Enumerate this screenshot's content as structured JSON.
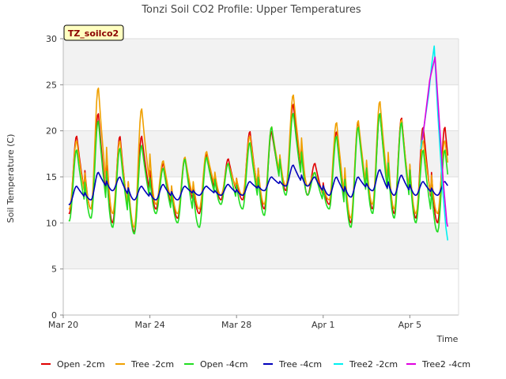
{
  "chart_data": {
    "type": "line",
    "title": "Tonzi Soil CO2 Profile: Upper Temperatures",
    "badge": "TZ_soilco2",
    "xlabel": "Time",
    "ylabel": "Soil Temperature (C)",
    "ylim": [
      0,
      30
    ],
    "yticks": [
      0,
      5,
      10,
      15,
      20,
      25,
      30
    ],
    "xlim": [
      "2024-03-20",
      "2024-04-07T06:00"
    ],
    "xticks": [
      {
        "date": "2024-03-20",
        "label": "Mar 20"
      },
      {
        "date": "2024-03-24",
        "label": "Mar 24"
      },
      {
        "date": "2024-03-28",
        "label": "Mar 28"
      },
      {
        "date": "2024-04-01",
        "label": "Apr 1"
      },
      {
        "date": "2024-04-05",
        "label": "Apr 5"
      }
    ],
    "grid": "horizontal bands",
    "legend_position": "bottom",
    "series": [
      {
        "name": "Open -2cm",
        "color": "#e00000",
        "start": "2024-03-20T06:00",
        "end": "2024-04-06T18:00",
        "max": [
          19.5,
          22.0,
          19.5,
          19.5,
          16.5,
          17.0,
          17.5,
          17.0,
          20.0,
          20.0,
          23.0,
          16.5,
          20.0,
          21.0,
          22.0,
          21.5,
          20.5
        ],
        "min": [
          11.0,
          11.5,
          10.0,
          9.0,
          11.5,
          10.5,
          11.0,
          12.5,
          12.5,
          11.5,
          13.5,
          13.0,
          12.0,
          10.0,
          11.5,
          11.0,
          10.5,
          10.0
        ]
      },
      {
        "name": "Tree -2cm",
        "color": "#f0a000",
        "start": "2024-03-20T06:00",
        "end": "2024-04-06T18:00",
        "max": [
          19.0,
          24.8,
          19.0,
          22.5,
          16.8,
          17.2,
          17.8,
          16.5,
          19.5,
          20.5,
          24.0,
          15.5,
          21.0,
          21.2,
          23.3,
          21.3,
          19.0
        ],
        "min": [
          11.5,
          11.5,
          11.0,
          9.5,
          12.0,
          11.0,
          11.5,
          13.0,
          13.0,
          12.0,
          14.0,
          14.0,
          12.5,
          10.5,
          12.0,
          11.5,
          11.0,
          11.0
        ]
      },
      {
        "name": "Open -4cm",
        "color": "#22dd22",
        "start": "2024-03-20T06:00",
        "end": "2024-04-06T18:00",
        "max": [
          18.0,
          21.2,
          18.2,
          18.5,
          16.0,
          17.0,
          17.2,
          16.5,
          18.8,
          20.5,
          22.0,
          15.5,
          19.5,
          20.5,
          22.0,
          21.0,
          18.0
        ],
        "min": [
          10.2,
          10.5,
          9.5,
          8.8,
          11.0,
          10.0,
          9.5,
          12.0,
          11.5,
          10.8,
          13.0,
          13.0,
          11.5,
          9.5,
          11.0,
          10.5,
          10.0,
          9.0
        ]
      },
      {
        "name": "Tree -4cm",
        "color": "#0000bb",
        "start": "2024-03-20T06:00",
        "end": "2024-04-06T18:00",
        "max": [
          14.0,
          15.5,
          15.0,
          14.0,
          14.2,
          14.0,
          14.0,
          14.2,
          14.5,
          15.0,
          16.3,
          15.0,
          15.0,
          15.0,
          15.8,
          15.2,
          14.5
        ],
        "min": [
          12.0,
          12.5,
          13.5,
          12.5,
          12.5,
          12.5,
          13.0,
          13.0,
          13.0,
          13.5,
          14.0,
          14.0,
          13.0,
          12.8,
          13.5,
          13.0,
          13.0,
          13.0
        ]
      },
      {
        "name": "Tree2 -2cm",
        "color": "#00f0f0",
        "points": [
          [
            "2024-04-05T12:00",
            18.0
          ],
          [
            "2024-04-05T21:00",
            24.0
          ],
          [
            "2024-04-06T00:00",
            27.0
          ],
          [
            "2024-04-06T03:00",
            29.2
          ],
          [
            "2024-04-06T07:00",
            22.0
          ],
          [
            "2024-04-06T12:00",
            14.0
          ],
          [
            "2024-04-06T16:00",
            9.5
          ],
          [
            "2024-04-06T18:00",
            8.1
          ]
        ]
      },
      {
        "name": "Tree2 -4cm",
        "color": "#e000e0",
        "points": [
          [
            "2024-04-05T14:00",
            19.0
          ],
          [
            "2024-04-05T22:00",
            25.5
          ],
          [
            "2024-04-06T01:00",
            26.8
          ],
          [
            "2024-04-06T04:00",
            28.0
          ],
          [
            "2024-04-06T08:00",
            22.0
          ],
          [
            "2024-04-06T13:00",
            14.5
          ],
          [
            "2024-04-06T17:00",
            10.0
          ],
          [
            "2024-04-06T18:00",
            9.6
          ]
        ]
      }
    ]
  }
}
